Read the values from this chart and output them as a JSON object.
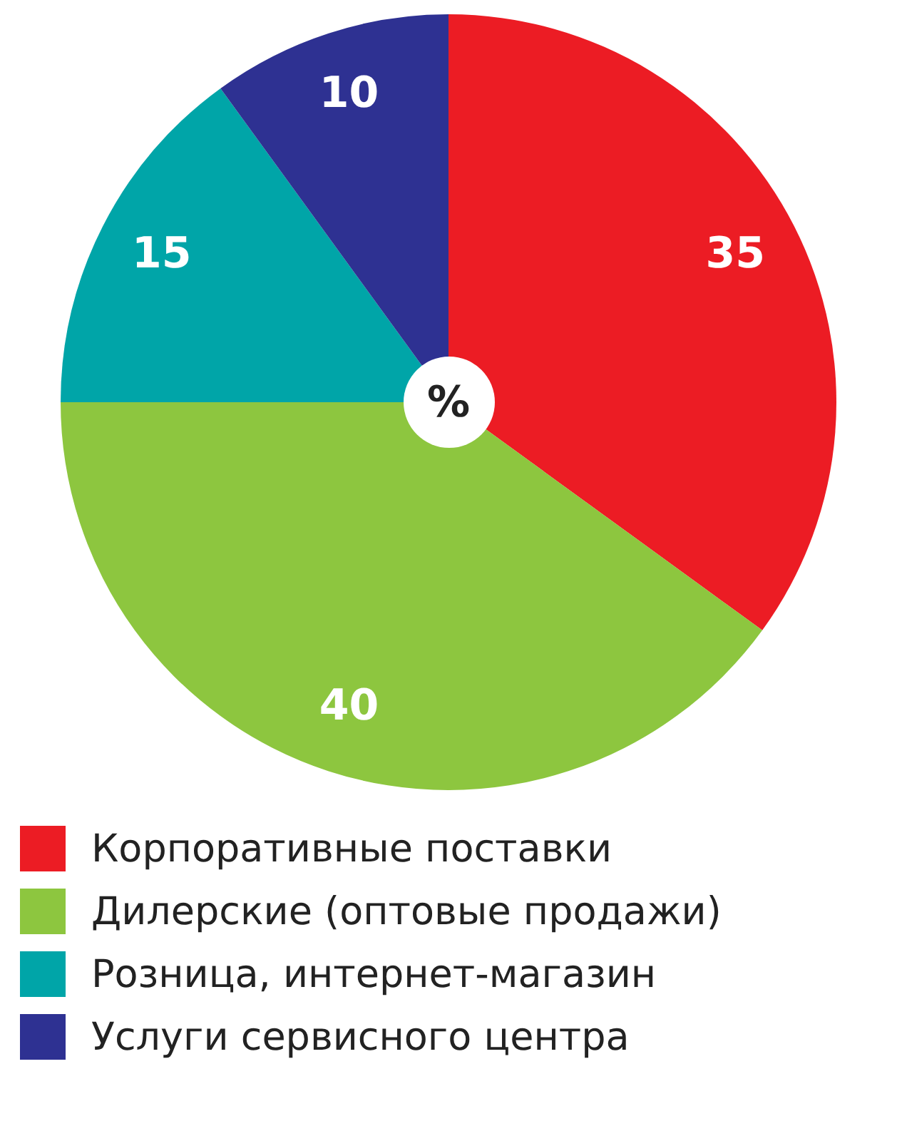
{
  "chart_data": {
    "type": "pie",
    "categories": [
      "Корпоративные поставки",
      "Дилерские (оптовые продажи)",
      "Розница, интернет-магазин",
      "Услуги сервисного центра"
    ],
    "values": [
      35,
      40,
      15,
      10
    ],
    "colors": [
      "#ec1c24",
      "#8dc63f",
      "#00a5a8",
      "#2e3192"
    ],
    "data_labels": true,
    "legend": "bottom",
    "annotations": [
      "%"
    ]
  }
}
